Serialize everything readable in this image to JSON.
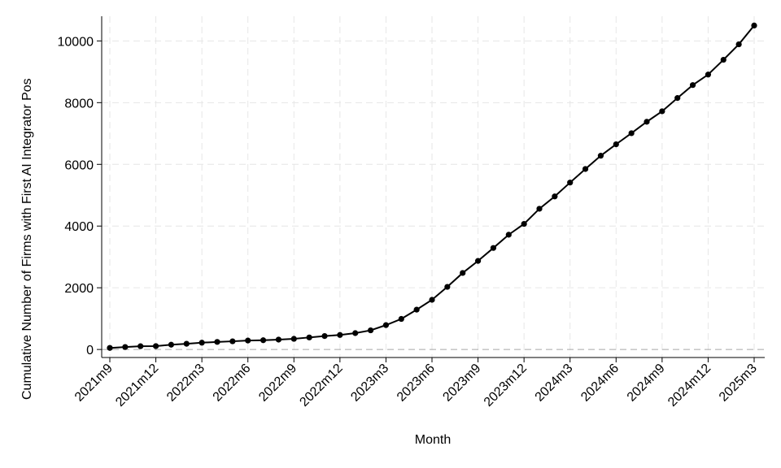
{
  "chart_data": {
    "type": "line",
    "x_label": "Month",
    "y_label": "Cumulative Number of Firms with First AI Integrator Pos",
    "categories": [
      "2021m9",
      null,
      null,
      "2021m12",
      null,
      null,
      "2022m3",
      null,
      null,
      "2022m6",
      null,
      null,
      "2022m9",
      null,
      null,
      "2022m12",
      null,
      null,
      "2023m3",
      null,
      null,
      "2023m6",
      null,
      null,
      "2023m9",
      null,
      null,
      "2023m12",
      null,
      null,
      "2024m3",
      null,
      null,
      "2024m6",
      null,
      null,
      "2024m9",
      null,
      null,
      "2024m12",
      null,
      null,
      "2025m3"
    ],
    "values": [
      50,
      80,
      105,
      110,
      155,
      185,
      220,
      245,
      265,
      290,
      300,
      320,
      345,
      390,
      435,
      470,
      530,
      620,
      790,
      990,
      1290,
      1610,
      2030,
      2480,
      2870,
      3290,
      3720,
      4070,
      4560,
      4960,
      5410,
      5850,
      6280,
      6650,
      7010,
      7380,
      7720,
      8150,
      8570,
      8910,
      9390,
      9890,
      10500
    ],
    "color": "#000000",
    "ylim": [
      -260,
      10800
    ],
    "yticks": [
      0,
      2000,
      4000,
      6000,
      8000,
      10000
    ],
    "grid": true
  }
}
